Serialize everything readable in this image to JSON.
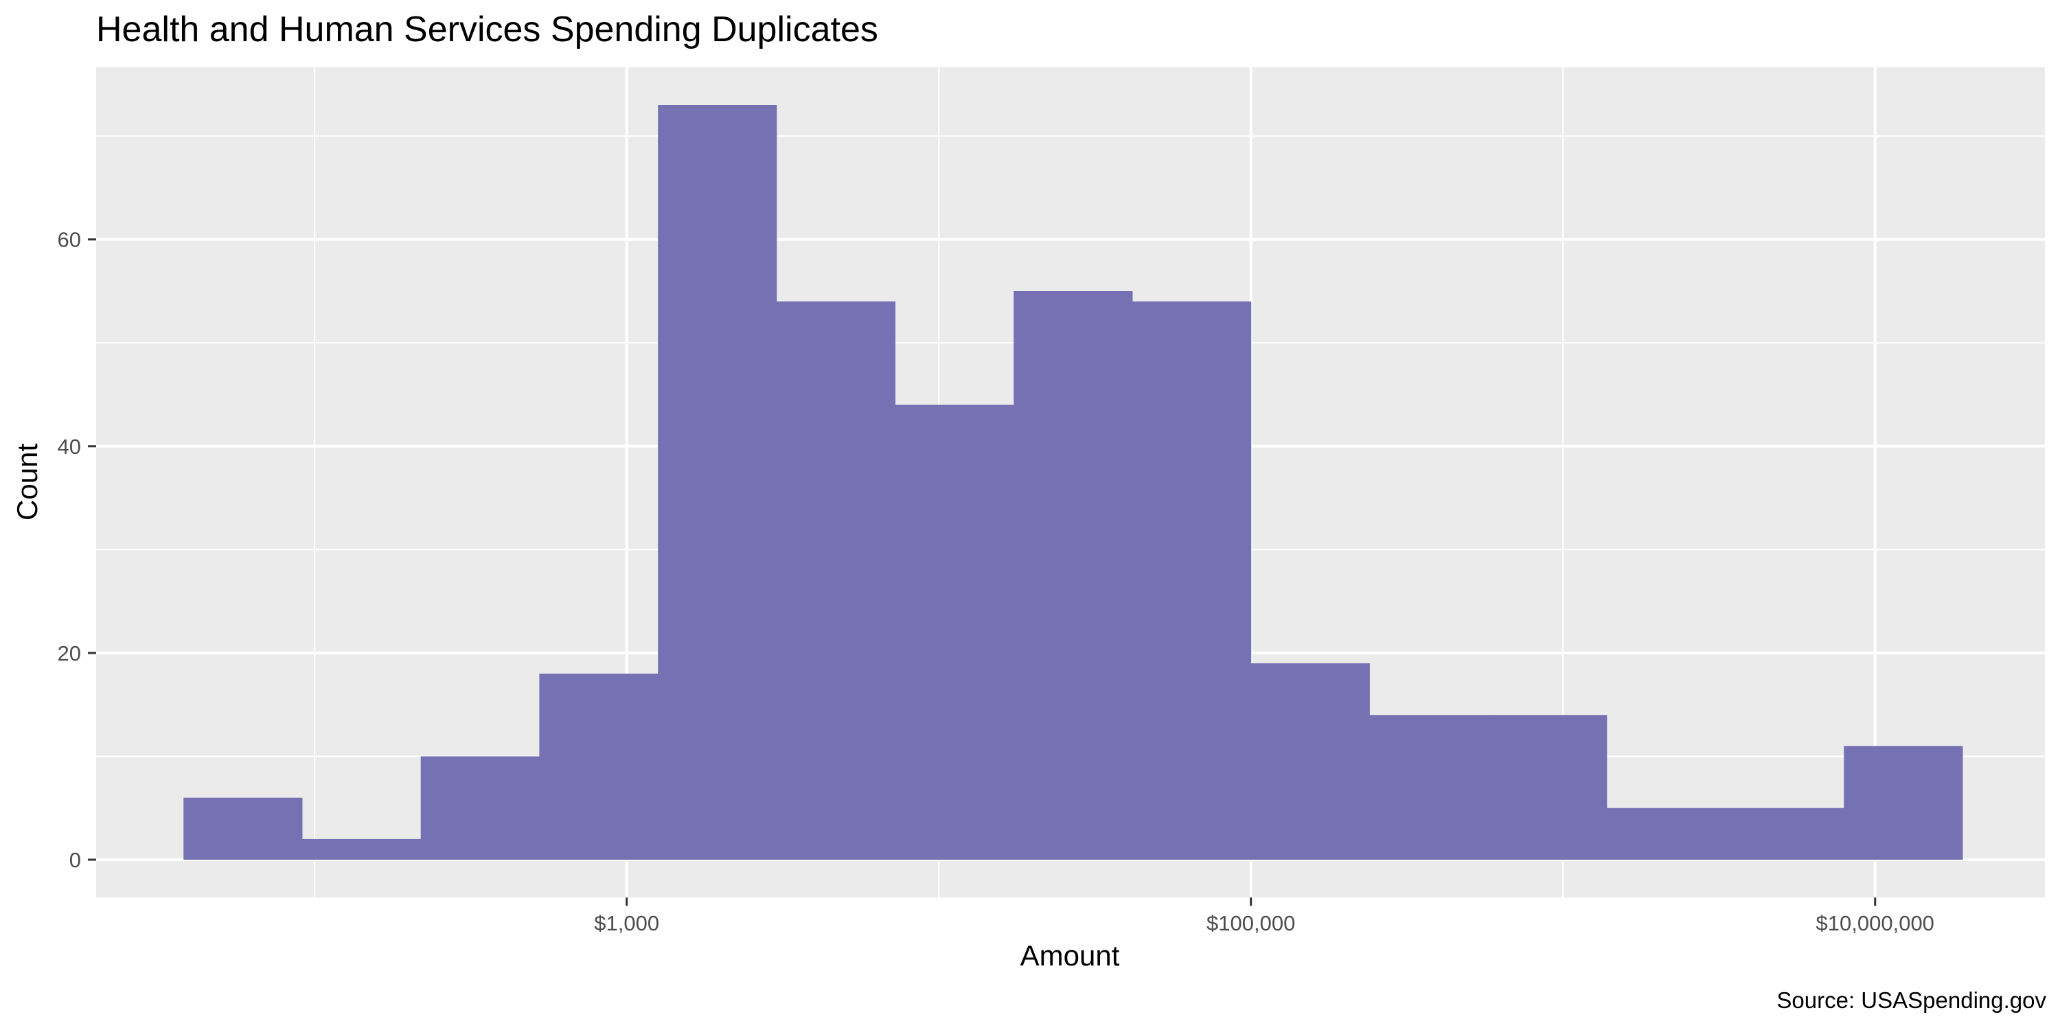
{
  "chart_data": {
    "type": "histogram",
    "title": "Health and Human Services Spending Duplicates",
    "xlabel": "Amount",
    "ylabel": "Count",
    "caption": "Source: USASpending.gov",
    "x_scale": "log10",
    "x_range_log10": [
      1.3,
      7.544
    ],
    "y_range": [
      0,
      73
    ],
    "y_ticks": [
      0,
      20,
      40,
      60
    ],
    "y_minor": [
      10,
      30,
      50,
      70
    ],
    "x_major_ticks": [
      {
        "log10": 3,
        "label": "$1,000"
      },
      {
        "log10": 5,
        "label": "$100,000"
      },
      {
        "log10": 7,
        "label": "$10,000,000"
      }
    ],
    "x_minor_log10": [
      2,
      4,
      6
    ],
    "bin_width_log10": 0.38,
    "bins": [
      {
        "start_log10": 1.58,
        "count": 6
      },
      {
        "start_log10": 1.96,
        "count": 2
      },
      {
        "start_log10": 2.34,
        "count": 10
      },
      {
        "start_log10": 2.72,
        "count": 18
      },
      {
        "start_log10": 3.1,
        "count": 73
      },
      {
        "start_log10": 3.48,
        "count": 54
      },
      {
        "start_log10": 3.86,
        "count": 44
      },
      {
        "start_log10": 4.24,
        "count": 55
      },
      {
        "start_log10": 4.62,
        "count": 54
      },
      {
        "start_log10": 5.0,
        "count": 19
      },
      {
        "start_log10": 5.38,
        "count": 14
      },
      {
        "start_log10": 5.76,
        "count": 14
      },
      {
        "start_log10": 6.14,
        "count": 5
      },
      {
        "start_log10": 6.52,
        "count": 5
      },
      {
        "start_log10": 6.9,
        "count": 11
      }
    ],
    "colors": {
      "bar": "#7671b3",
      "panel": "#ebebeb",
      "grid": "#ffffff",
      "tick": "#333333"
    }
  }
}
